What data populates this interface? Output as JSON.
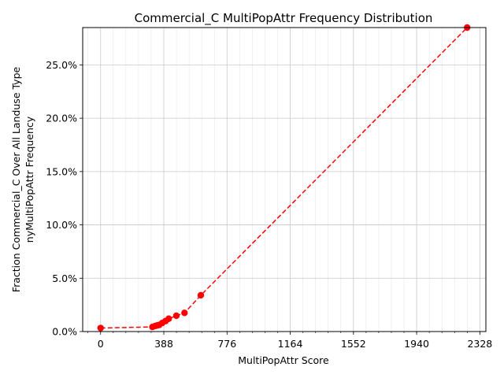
{
  "chart_data": {
    "type": "line",
    "title": "Commercial_C MultiPopAttr Frequency Distribution",
    "xlabel": "MultiPopAttr Score",
    "ylabel_lines": [
      "Fraction Commercial_C Over All Landuse Type",
      "nyMultiPopAttr Frequency"
    ],
    "xlim": [
      -110,
      2365
    ],
    "ylim": [
      0,
      28.5
    ],
    "xticks": [
      0,
      388,
      776,
      1164,
      1552,
      1940,
      2328
    ],
    "xtick_labels": [
      "0",
      "388",
      "776",
      "1164",
      "1552",
      "1940",
      "2328"
    ],
    "yticks": [
      0,
      5,
      10,
      15,
      20,
      25
    ],
    "ytick_labels": [
      "0.0%",
      "5.0%",
      "10.0%",
      "15.0%",
      "20.0%",
      "25.0%"
    ],
    "grid": true,
    "series": [
      {
        "color": "#ff0000",
        "line_style": "dashed",
        "marker": "circle",
        "x": [
          0,
          318,
          335,
          348,
          360,
          378,
          398,
          418,
          465,
          515,
          615,
          2250
        ],
        "y": [
          0.33,
          0.43,
          0.52,
          0.58,
          0.62,
          0.8,
          0.98,
          1.2,
          1.48,
          1.75,
          3.4,
          28.5
        ]
      }
    ]
  }
}
